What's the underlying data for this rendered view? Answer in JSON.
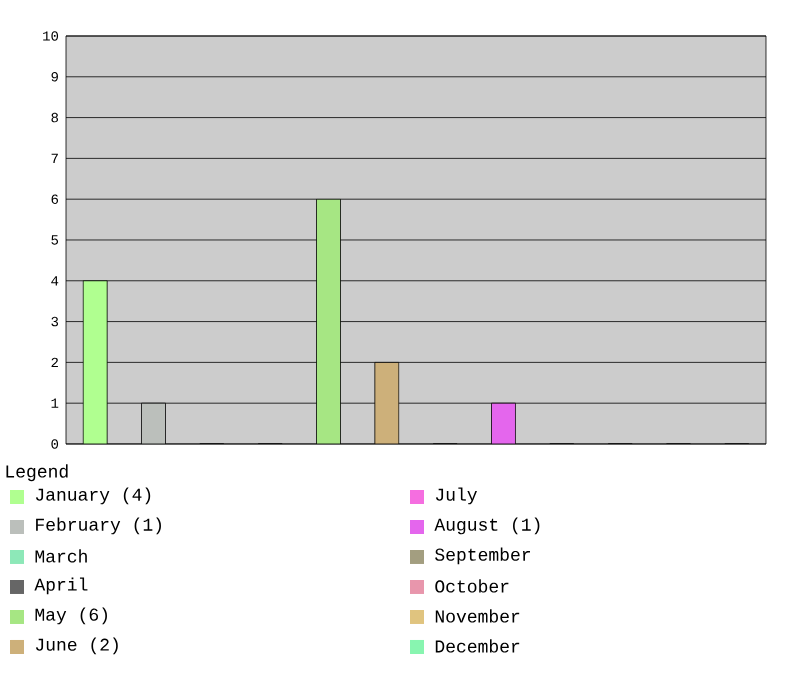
{
  "chart_data": {
    "type": "bar",
    "legend_title": "Legend",
    "categories": [
      null,
      null,
      null,
      null,
      null,
      null,
      null,
      null,
      null,
      null,
      null,
      null
    ],
    "series": [
      {
        "name": "January (4)",
        "color": "#b0ff90",
        "values": [
          4,
          null,
          null,
          null,
          null,
          null,
          null,
          null,
          null,
          null,
          null,
          null
        ]
      },
      {
        "name": "February (1)",
        "color": "#bbbfbb",
        "values": [
          null,
          1,
          null,
          null,
          null,
          null,
          null,
          null,
          null,
          null,
          null,
          null
        ]
      },
      {
        "name": "March",
        "color": "#8de8b8",
        "values": [
          null,
          null,
          0,
          null,
          null,
          null,
          null,
          null,
          null,
          null,
          null,
          null
        ]
      },
      {
        "name": "April",
        "color": "#666666",
        "values": [
          null,
          null,
          null,
          0,
          null,
          null,
          null,
          null,
          null,
          null,
          null,
          null
        ]
      },
      {
        "name": "May (6)",
        "color": "#a6e683",
        "values": [
          null,
          null,
          null,
          null,
          6,
          null,
          null,
          null,
          null,
          null,
          null,
          null
        ]
      },
      {
        "name": "June (2)",
        "color": "#cdb07a",
        "values": [
          null,
          null,
          null,
          null,
          null,
          2,
          null,
          null,
          null,
          null,
          null,
          null
        ]
      },
      {
        "name": "July",
        "color": "#f56ee0",
        "values": [
          null,
          null,
          null,
          null,
          null,
          null,
          0,
          null,
          null,
          null,
          null,
          null
        ]
      },
      {
        "name": "August (1)",
        "color": "#e466ed",
        "values": [
          null,
          null,
          null,
          null,
          null,
          null,
          null,
          1,
          null,
          null,
          null,
          null
        ]
      },
      {
        "name": "September",
        "color": "#a39e80",
        "values": [
          null,
          null,
          null,
          null,
          null,
          null,
          null,
          null,
          0,
          null,
          null,
          null
        ]
      },
      {
        "name": "October",
        "color": "#e896ac",
        "values": [
          null,
          null,
          null,
          null,
          null,
          null,
          null,
          null,
          null,
          0,
          null,
          null
        ]
      },
      {
        "name": "November",
        "color": "#e0c47f",
        "values": [
          null,
          null,
          null,
          null,
          null,
          null,
          null,
          null,
          null,
          null,
          0,
          null
        ]
      },
      {
        "name": "December",
        "color": "#88f5b0",
        "values": [
          null,
          null,
          null,
          null,
          null,
          null,
          null,
          null,
          null,
          null,
          null,
          0
        ]
      }
    ],
    "ylim": [
      0,
      10
    ],
    "yticks": [
      0,
      1,
      2,
      3,
      4,
      5,
      6,
      7,
      8,
      9,
      10
    ],
    "grid": "y",
    "legend": "bottom",
    "tick_labels": "y"
  }
}
